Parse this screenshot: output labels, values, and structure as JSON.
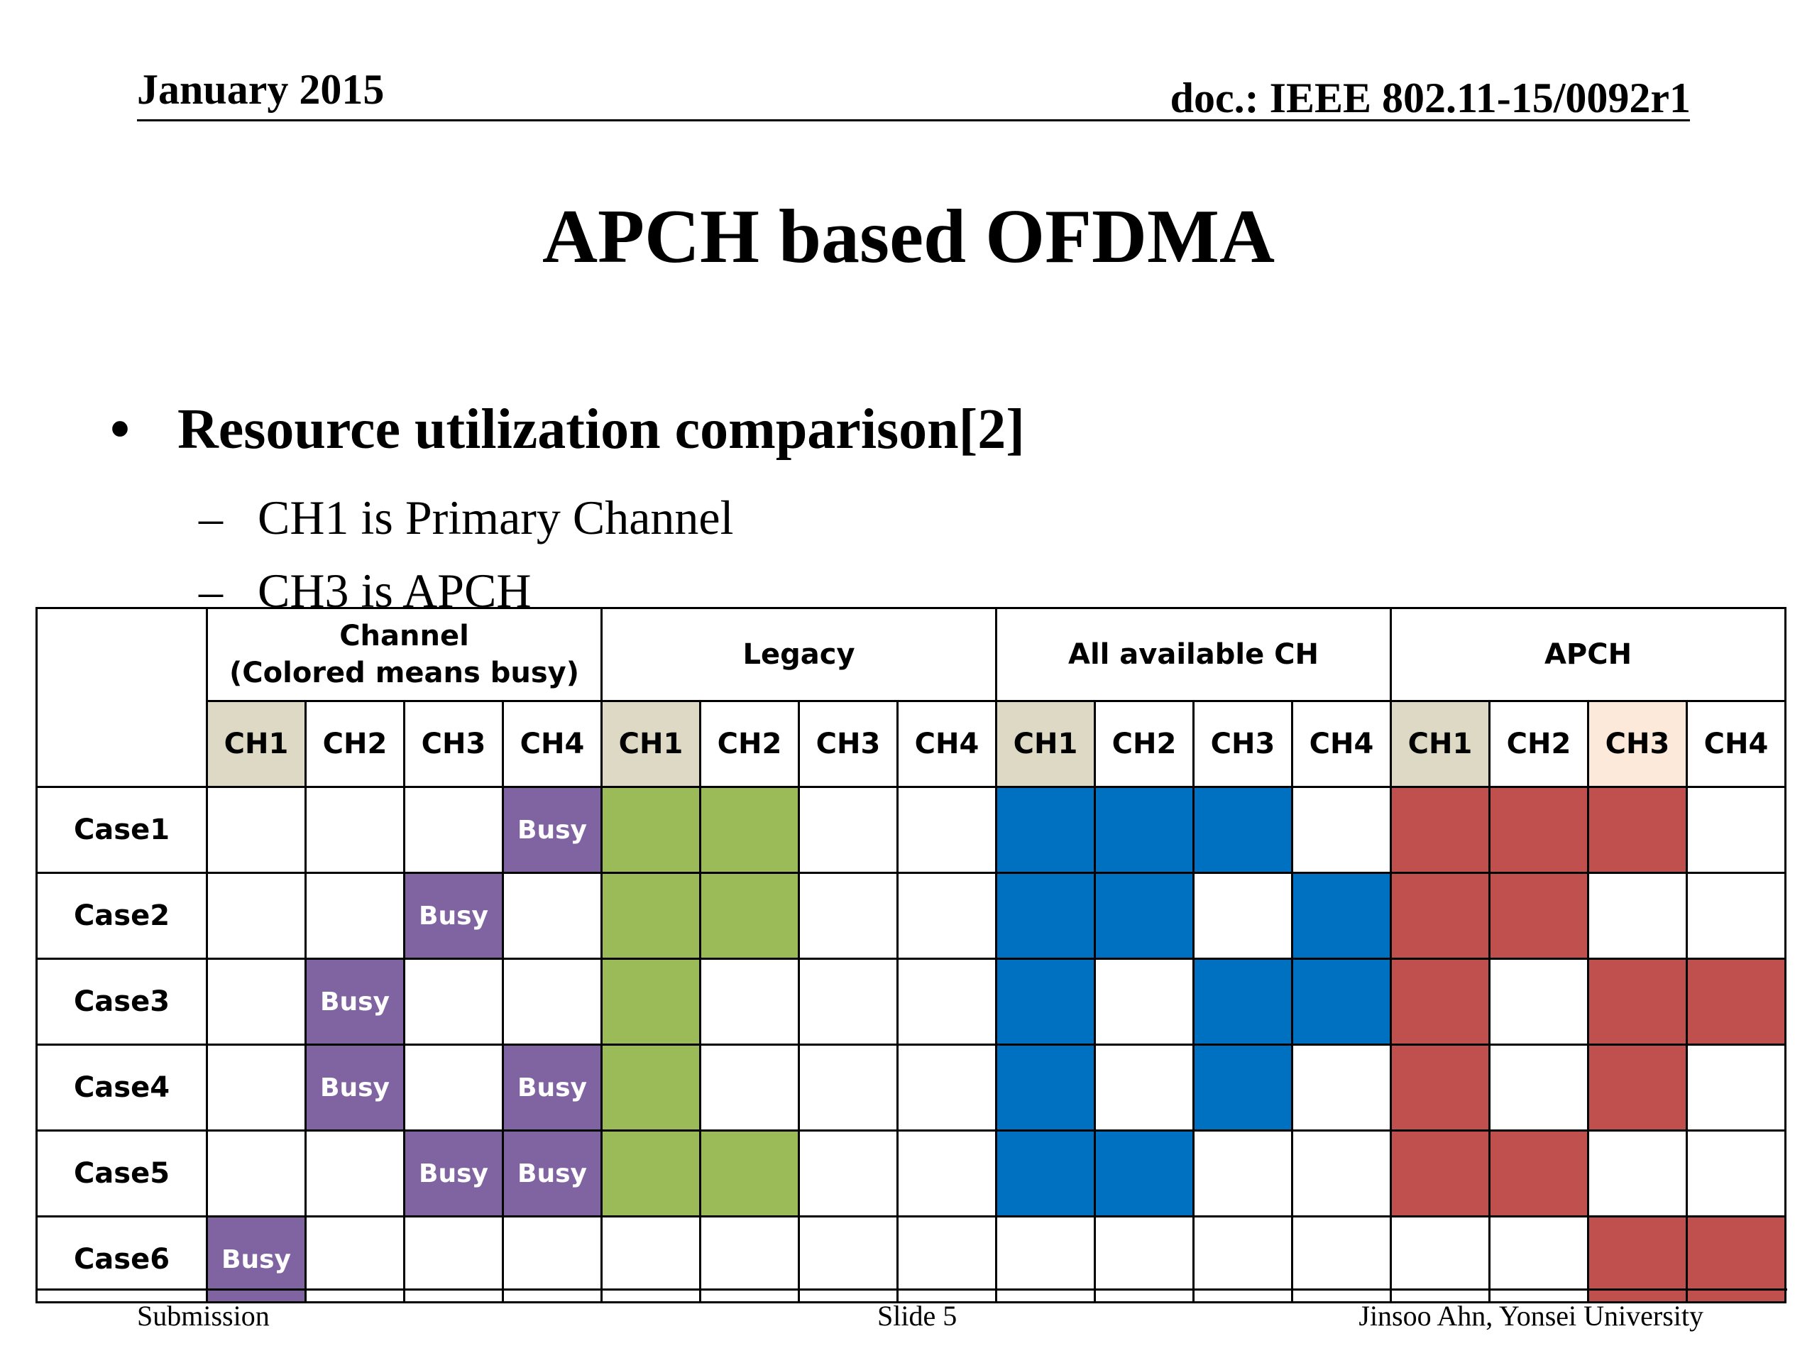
{
  "header": {
    "date": "January 2015",
    "doc": "doc.: IEEE 802.11-15/0092r1"
  },
  "title": "APCH based OFDMA",
  "bullet": {
    "text": "Resource utilization comparison[2]",
    "subs": [
      "CH1 is Primary Channel",
      "CH3 is APCH"
    ]
  },
  "table": {
    "groups": [
      "Channel\n(Colored means busy)",
      "Legacy",
      "All available CH",
      "APCH"
    ],
    "channels": [
      "CH1",
      "CH2",
      "CH3",
      "CH4"
    ],
    "busy_label": "Busy",
    "colors": {
      "primary_header": "#ddd9c4",
      "apch_header": "#fde9d9",
      "busy": "#8064a2",
      "legacy": "#9bbb59",
      "all_available": "#0070c0",
      "apch": "#c0504d"
    },
    "rows": [
      {
        "label": "Case1",
        "busy": [
          0,
          0,
          0,
          1
        ],
        "legacy": [
          1,
          1,
          0,
          0
        ],
        "all_available": [
          1,
          1,
          1,
          0
        ],
        "apch": [
          1,
          1,
          1,
          0
        ]
      },
      {
        "label": "Case2",
        "busy": [
          0,
          0,
          1,
          0
        ],
        "legacy": [
          1,
          1,
          0,
          0
        ],
        "all_available": [
          1,
          1,
          0,
          1
        ],
        "apch": [
          1,
          1,
          0,
          0
        ]
      },
      {
        "label": "Case3",
        "busy": [
          0,
          1,
          0,
          0
        ],
        "legacy": [
          1,
          0,
          0,
          0
        ],
        "all_available": [
          1,
          0,
          1,
          1
        ],
        "apch": [
          1,
          0,
          1,
          1
        ]
      },
      {
        "label": "Case4",
        "busy": [
          0,
          1,
          0,
          1
        ],
        "legacy": [
          1,
          0,
          0,
          0
        ],
        "all_available": [
          1,
          0,
          1,
          0
        ],
        "apch": [
          1,
          0,
          1,
          0
        ]
      },
      {
        "label": "Case5",
        "busy": [
          0,
          0,
          1,
          1
        ],
        "legacy": [
          1,
          1,
          0,
          0
        ],
        "all_available": [
          1,
          1,
          0,
          0
        ],
        "apch": [
          1,
          1,
          0,
          0
        ]
      },
      {
        "label": "Case6",
        "busy": [
          1,
          0,
          0,
          0
        ],
        "legacy": [
          0,
          0,
          0,
          0
        ],
        "all_available": [
          0,
          0,
          0,
          0
        ],
        "apch": [
          0,
          0,
          1,
          1
        ]
      }
    ]
  },
  "footer": {
    "left": "Submission",
    "center": "Slide 5",
    "right": "Jinsoo Ahn, Yonsei University"
  }
}
